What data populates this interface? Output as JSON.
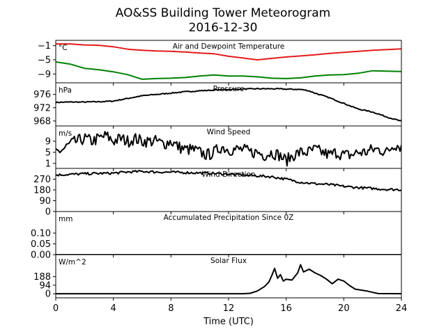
{
  "title_line1": "AO&SS Building Tower Meteorogram",
  "title_line2": "2016-12-30",
  "xlabel": "Time (UTC)",
  "colors": {
    "temperature": "#e41a1c",
    "dewpoint": "#008000",
    "line": "#000000"
  },
  "chart_data": [
    {
      "type": "line",
      "title": "Air and Dewpoint Temperature",
      "unit": "°C",
      "xlim": [
        0,
        24
      ],
      "ylim": [
        -11.5,
        0.5
      ],
      "yticks": [
        -1,
        -5,
        -9
      ],
      "ytick_labels": [
        "−1",
        "−5",
        "−9"
      ],
      "series": [
        {
          "x": [
            0,
            1,
            2,
            3,
            4,
            5,
            6,
            7,
            8,
            9,
            10,
            11,
            12,
            13,
            14,
            15,
            16,
            17,
            18,
            19,
            20,
            21,
            22,
            23,
            24
          ],
          "values": [
            -0.5,
            -0.5,
            -0.8,
            -0.9,
            -1.3,
            -2.0,
            -2.3,
            -2.5,
            -2.6,
            -2.8,
            -3.1,
            -3.3,
            -4.0,
            -4.5,
            -5.0,
            -4.6,
            -4.2,
            -3.9,
            -3.6,
            -3.2,
            -2.9,
            -2.6,
            -2.3,
            -2.1,
            -1.9
          ]
        },
        {
          "x": [
            0,
            1,
            2,
            3,
            4,
            5,
            6,
            7,
            8,
            9,
            10,
            11,
            12,
            13,
            14,
            15,
            16,
            17,
            18,
            19,
            20,
            21,
            22,
            23,
            24
          ],
          "values": [
            -5.6,
            -6.2,
            -7.4,
            -7.8,
            -8.4,
            -9.2,
            -10.5,
            -10.3,
            -10.2,
            -10.0,
            -9.6,
            -9.3,
            -9.6,
            -9.6,
            -9.8,
            -10.2,
            -10.3,
            -10.1,
            -9.6,
            -9.3,
            -9.2,
            -8.8,
            -8.1,
            -8.2,
            -8.3
          ]
        }
      ]
    },
    {
      "type": "line",
      "title": "Pressure",
      "unit": "hPa",
      "xlim": [
        0,
        24
      ],
      "ylim": [
        966.5,
        979.5
      ],
      "yticks": [
        976,
        972,
        968
      ],
      "ytick_labels": [
        "976",
        "972",
        "968"
      ],
      "series": [
        {
          "x": [
            0,
            1,
            2,
            3,
            4,
            5,
            6,
            7,
            8,
            9,
            10,
            11,
            12,
            13,
            14,
            15,
            16,
            17,
            17.5,
            18,
            19,
            20,
            21,
            22,
            23,
            24
          ],
          "values": [
            973.6,
            973.7,
            973.7,
            973.8,
            974.0,
            974.8,
            975.6,
            976.0,
            976.4,
            976.8,
            977.1,
            977.3,
            977.5,
            977.6,
            977.7,
            977.7,
            977.6,
            977.5,
            977.2,
            976.4,
            975.0,
            973.3,
            971.6,
            970.7,
            969.2,
            967.9
          ]
        }
      ]
    },
    {
      "type": "line",
      "title": "Wind Speed",
      "unit": "m/s",
      "xlim": [
        0,
        24
      ],
      "ylim": [
        -0.8,
        14.5
      ],
      "yticks": [
        9,
        5,
        1
      ],
      "ytick_labels": [
        "9",
        "5",
        "1"
      ],
      "series": [
        {
          "x": [
            0,
            0.5,
            1,
            1.5,
            2,
            2.5,
            3,
            3.5,
            4,
            4.5,
            5,
            5.5,
            6,
            6.5,
            7,
            7.5,
            8,
            8.5,
            9,
            9.5,
            10,
            10.5,
            11,
            11.5,
            12,
            12.5,
            13,
            13.5,
            14,
            14.5,
            15,
            15.5,
            16,
            16.5,
            17,
            17.5,
            18,
            18.5,
            19,
            19.5,
            20,
            20.5,
            21,
            21.5,
            22,
            22.5,
            23,
            23.5,
            24
          ],
          "values": [
            5,
            6,
            8,
            9,
            10,
            9,
            10,
            11,
            9,
            10,
            9,
            10,
            9,
            9,
            9,
            8,
            9,
            7,
            6,
            6,
            5,
            4,
            5,
            7,
            6,
            6,
            6,
            5,
            5,
            4,
            5,
            4,
            2,
            4,
            5,
            5,
            6,
            5,
            4,
            5,
            4,
            4,
            5,
            5,
            6,
            6,
            5,
            8,
            7
          ]
        }
      ]
    },
    {
      "type": "line",
      "title": "Wind Direction",
      "unit": "",
      "xlim": [
        0,
        24
      ],
      "ylim": [
        0,
        360
      ],
      "yticks": [
        270,
        180,
        90,
        0
      ],
      "ytick_labels": [
        "270",
        "180",
        "90",
        "0"
      ],
      "series": [
        {
          "x": [
            0,
            1,
            2,
            3,
            4,
            5,
            6,
            7,
            8,
            9,
            10,
            11,
            12,
            13,
            14,
            15,
            16,
            17,
            18,
            19,
            20,
            21,
            22,
            23,
            24
          ],
          "values": [
            305,
            310,
            315,
            318,
            320,
            330,
            335,
            330,
            328,
            325,
            322,
            318,
            312,
            305,
            298,
            290,
            270,
            245,
            232,
            225,
            210,
            200,
            192,
            185,
            182
          ]
        }
      ]
    },
    {
      "type": "line",
      "title": "Accumulated Precipitation Since 0Z",
      "unit": "mm",
      "xlim": [
        0,
        24
      ],
      "ylim": [
        0,
        0.2
      ],
      "yticks": [
        0.1,
        0.05,
        0.0
      ],
      "ytick_labels": [
        "0.10",
        "0.05",
        "0.00"
      ],
      "series": [
        {
          "x": [
            0,
            24
          ],
          "values": [
            0,
            0
          ]
        }
      ]
    },
    {
      "type": "line",
      "title": "Solar Flux",
      "unit": "W/m^2",
      "xlim": [
        0,
        24
      ],
      "ylim": [
        -45,
        430
      ],
      "yticks": [
        188,
        94,
        0
      ],
      "ytick_labels": [
        "188",
        "94",
        "0"
      ],
      "series": [
        {
          "x": [
            0,
            13,
            13.5,
            14,
            14.5,
            14.8,
            15.0,
            15.2,
            15.4,
            15.6,
            15.8,
            16.0,
            16.4,
            16.8,
            17.0,
            17.2,
            17.6,
            18.0,
            18.4,
            18.8,
            19.2,
            19.6,
            20.0,
            20.4,
            20.8,
            21.2,
            21.6,
            22.0,
            22.4,
            24
          ],
          "values": [
            0,
            0,
            5,
            30,
            80,
            130,
            200,
            280,
            170,
            210,
            140,
            160,
            150,
            230,
            320,
            240,
            270,
            230,
            200,
            160,
            110,
            160,
            140,
            90,
            50,
            40,
            30,
            15,
            2,
            0
          ]
        }
      ]
    }
  ],
  "x_axis": {
    "ticks": [
      0,
      4,
      8,
      12,
      16,
      20,
      24
    ],
    "tick_labels": [
      "0",
      "4",
      "8",
      "12",
      "16",
      "20",
      "24"
    ]
  }
}
